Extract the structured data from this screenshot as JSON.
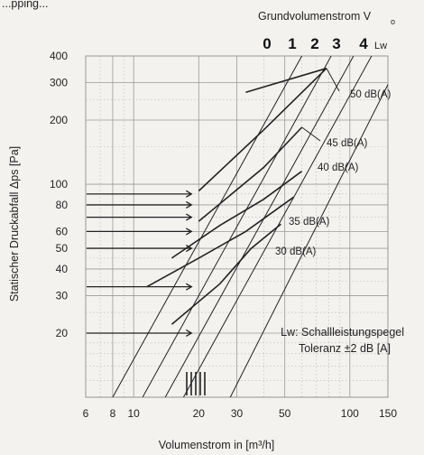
{
  "header_fragment": "...pping...",
  "chart_data": {
    "type": "line",
    "title": "Grundvolumenstrom V",
    "title_subscript": "o",
    "xlabel": "Volumenstrom in [m³/h]",
    "ylabel": "Statischer Druckabfall Δps [Pa]",
    "x_scale": "log",
    "y_scale": "log",
    "xlim": [
      6,
      150
    ],
    "ylim": [
      10,
      400
    ],
    "x_ticks": [
      6,
      8,
      10,
      20,
      30,
      50,
      100,
      150
    ],
    "x_tick_labels": [
      "6",
      "8",
      "10",
      "20",
      "30",
      "50",
      "100",
      "150"
    ],
    "y_ticks": [
      20,
      30,
      40,
      50,
      60,
      80,
      100,
      200,
      300,
      400
    ],
    "y_tick_labels": [
      "20",
      "30",
      "40",
      "50",
      "60",
      "80",
      "100",
      "200",
      "300",
      "400"
    ],
    "grid": true,
    "lw_scale": {
      "labels": [
        "0",
        "1",
        "2",
        "3",
        "4"
      ],
      "unit": "Lw",
      "lines": [
        {
          "label": "0",
          "points": [
            [
              8,
              10
            ],
            [
              60,
              400
            ]
          ]
        },
        {
          "label": "1",
          "points": [
            [
              11,
              10
            ],
            [
              82,
              400
            ]
          ]
        },
        {
          "label": "2",
          "points": [
            [
              14,
              10
            ],
            [
              104,
              400
            ]
          ]
        },
        {
          "label": "3",
          "points": [
            [
              17,
              10
            ],
            [
              126,
              400
            ]
          ]
        },
        {
          "label": "4",
          "points": [
            [
              28,
              10
            ],
            [
              175,
              400
            ]
          ]
        }
      ]
    },
    "series": [
      {
        "name": "50 dB(A)",
        "points": [
          [
            20,
            93
          ],
          [
            40,
            180
          ],
          [
            78,
            350
          ]
        ]
      },
      {
        "name": "45 dB(A)",
        "points": [
          [
            20,
            67
          ],
          [
            40,
            120
          ],
          [
            60,
            185
          ]
        ]
      },
      {
        "name": "40 dB(A)",
        "points": [
          [
            15,
            45
          ],
          [
            25,
            64
          ],
          [
            40,
            85
          ],
          [
            60,
            115
          ]
        ]
      },
      {
        "name": "35 dB(A)",
        "points": [
          [
            11.5,
            33
          ],
          [
            20,
            45
          ],
          [
            33,
            60
          ],
          [
            55,
            87
          ]
        ]
      },
      {
        "name": "30 dB(A)",
        "points": [
          [
            15,
            22
          ],
          [
            25,
            34
          ],
          [
            35,
            50
          ],
          [
            48,
            65
          ]
        ]
      }
    ],
    "top_segment": {
      "points": [
        [
          33,
          270
        ],
        [
          78,
          350
        ]
      ]
    },
    "arrows": [
      {
        "y": 90,
        "x_end": 20
      },
      {
        "y": 80,
        "x_end": 20
      },
      {
        "y": 70,
        "x_end": 20
      },
      {
        "y": 60,
        "x_end": 20
      },
      {
        "y": 50,
        "x_end": 20
      },
      {
        "y": 33,
        "x_end": 20
      },
      {
        "y": 20,
        "x_end": 20
      }
    ],
    "annotation": {
      "line1": "Lw: Schallleistungspegel",
      "line2": "Toleranz ±2 dB [A]"
    }
  }
}
